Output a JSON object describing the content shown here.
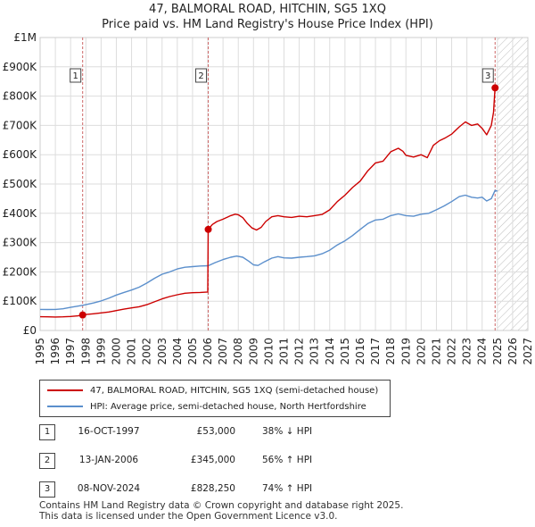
{
  "chart_data": {
    "type": "line",
    "title": "47, BALMORAL ROAD, HITCHIN, SG5 1XQ",
    "subtitle": "Price paid vs. HM Land Registry's House Price Index (HPI)",
    "x_range": [
      1995,
      2027
    ],
    "x_ticks": [
      "1995",
      "1996",
      "1997",
      "1998",
      "1999",
      "2000",
      "2001",
      "2002",
      "2003",
      "2004",
      "2005",
      "2006",
      "2007",
      "2008",
      "2009",
      "2010",
      "2011",
      "2012",
      "2013",
      "2014",
      "2015",
      "2016",
      "2017",
      "2018",
      "2019",
      "2020",
      "2021",
      "2022",
      "2023",
      "2024",
      "2025",
      "2026",
      "2027"
    ],
    "ylim": [
      0,
      1000000
    ],
    "y_ticks": [
      {
        "value": 0,
        "label": "£0"
      },
      {
        "value": 100000,
        "label": "£100K"
      },
      {
        "value": 200000,
        "label": "£200K"
      },
      {
        "value": 300000,
        "label": "£300K"
      },
      {
        "value": 400000,
        "label": "£400K"
      },
      {
        "value": 500000,
        "label": "£500K"
      },
      {
        "value": 600000,
        "label": "£600K"
      },
      {
        "value": 700000,
        "label": "£700K"
      },
      {
        "value": 800000,
        "label": "£800K"
      },
      {
        "value": 900000,
        "label": "£900K"
      },
      {
        "value": 1000000,
        "label": "£1M"
      }
    ],
    "forecast_start": 2025.0,
    "colors": {
      "property": "#cc0000",
      "hpi": "#5b8fcc",
      "grid": "#dddddd",
      "marker_line": "#cc6666"
    },
    "series": [
      {
        "name": "47, BALMORAL ROAD, HITCHIN, SG5 1XQ (semi-detached house)",
        "color": "#cc0000",
        "points": [
          [
            1995.0,
            47000
          ],
          [
            1995.5,
            46500
          ],
          [
            1996.0,
            46000
          ],
          [
            1996.5,
            46500
          ],
          [
            1997.0,
            48000
          ],
          [
            1997.5,
            50000
          ],
          [
            1997.79,
            53000
          ],
          [
            1998.0,
            54500
          ],
          [
            1998.5,
            57000
          ],
          [
            1999.0,
            60000
          ],
          [
            1999.5,
            63000
          ],
          [
            2000.0,
            68000
          ],
          [
            2000.5,
            73000
          ],
          [
            2001.0,
            77000
          ],
          [
            2001.5,
            81000
          ],
          [
            2002.0,
            88000
          ],
          [
            2002.5,
            98000
          ],
          [
            2003.0,
            108000
          ],
          [
            2003.5,
            116000
          ],
          [
            2004.0,
            122000
          ],
          [
            2004.5,
            127000
          ],
          [
            2005.0,
            129000
          ],
          [
            2005.5,
            130000
          ],
          [
            2006.0,
            131500
          ],
          [
            2006.03,
            345000
          ],
          [
            2006.3,
            362000
          ],
          [
            2006.6,
            372000
          ],
          [
            2007.0,
            380000
          ],
          [
            2007.5,
            392000
          ],
          [
            2007.8,
            397000
          ],
          [
            2008.0,
            395000
          ],
          [
            2008.3,
            385000
          ],
          [
            2008.6,
            365000
          ],
          [
            2008.9,
            350000
          ],
          [
            2009.2,
            343000
          ],
          [
            2009.5,
            352000
          ],
          [
            2009.8,
            372000
          ],
          [
            2010.2,
            388000
          ],
          [
            2010.6,
            392000
          ],
          [
            2011.0,
            388000
          ],
          [
            2011.5,
            386000
          ],
          [
            2012.0,
            390000
          ],
          [
            2012.5,
            388000
          ],
          [
            2013.0,
            392000
          ],
          [
            2013.5,
            396000
          ],
          [
            2014.0,
            412000
          ],
          [
            2014.5,
            440000
          ],
          [
            2015.0,
            462000
          ],
          [
            2015.5,
            488000
          ],
          [
            2016.0,
            510000
          ],
          [
            2016.5,
            545000
          ],
          [
            2017.0,
            572000
          ],
          [
            2017.5,
            578000
          ],
          [
            2018.0,
            610000
          ],
          [
            2018.5,
            622000
          ],
          [
            2018.8,
            612000
          ],
          [
            2019.0,
            598000
          ],
          [
            2019.5,
            592000
          ],
          [
            2020.0,
            600000
          ],
          [
            2020.4,
            590000
          ],
          [
            2020.8,
            632000
          ],
          [
            2021.2,
            648000
          ],
          [
            2021.6,
            658000
          ],
          [
            2022.0,
            670000
          ],
          [
            2022.5,
            695000
          ],
          [
            2022.9,
            712000
          ],
          [
            2023.3,
            700000
          ],
          [
            2023.7,
            705000
          ],
          [
            2024.0,
            690000
          ],
          [
            2024.3,
            668000
          ],
          [
            2024.6,
            700000
          ],
          [
            2024.75,
            745000
          ],
          [
            2024.85,
            828250
          ],
          [
            2025.0,
            835000
          ]
        ]
      },
      {
        "name": "HPI: Average price, semi-detached house, North Hertfordshire",
        "color": "#5b8fcc",
        "points": [
          [
            1995.0,
            72000
          ],
          [
            1995.5,
            71500
          ],
          [
            1996.0,
            72000
          ],
          [
            1996.5,
            74000
          ],
          [
            1997.0,
            79000
          ],
          [
            1997.79,
            86000
          ],
          [
            1998.0,
            88000
          ],
          [
            1998.5,
            94000
          ],
          [
            1999.0,
            101000
          ],
          [
            1999.5,
            110000
          ],
          [
            2000.0,
            121000
          ],
          [
            2000.5,
            130000
          ],
          [
            2001.0,
            138000
          ],
          [
            2001.5,
            148000
          ],
          [
            2002.0,
            162000
          ],
          [
            2002.5,
            178000
          ],
          [
            2003.0,
            192000
          ],
          [
            2003.5,
            200000
          ],
          [
            2004.0,
            210000
          ],
          [
            2004.5,
            216000
          ],
          [
            2005.0,
            218000
          ],
          [
            2005.5,
            220000
          ],
          [
            2006.03,
            221000
          ],
          [
            2006.5,
            232000
          ],
          [
            2007.0,
            242000
          ],
          [
            2007.5,
            250000
          ],
          [
            2007.9,
            254000
          ],
          [
            2008.3,
            250000
          ],
          [
            2008.7,
            236000
          ],
          [
            2009.0,
            224000
          ],
          [
            2009.3,
            222000
          ],
          [
            2009.7,
            234000
          ],
          [
            2010.2,
            247000
          ],
          [
            2010.6,
            252000
          ],
          [
            2011.0,
            248000
          ],
          [
            2011.5,
            247000
          ],
          [
            2012.0,
            250000
          ],
          [
            2012.5,
            252000
          ],
          [
            2013.0,
            255000
          ],
          [
            2013.5,
            262000
          ],
          [
            2014.0,
            274000
          ],
          [
            2014.5,
            292000
          ],
          [
            2015.0,
            306000
          ],
          [
            2015.5,
            324000
          ],
          [
            2016.0,
            345000
          ],
          [
            2016.5,
            365000
          ],
          [
            2017.0,
            377000
          ],
          [
            2017.5,
            380000
          ],
          [
            2018.0,
            392000
          ],
          [
            2018.5,
            398000
          ],
          [
            2019.0,
            392000
          ],
          [
            2019.5,
            390000
          ],
          [
            2020.0,
            397000
          ],
          [
            2020.5,
            400000
          ],
          [
            2021.0,
            412000
          ],
          [
            2021.5,
            425000
          ],
          [
            2022.0,
            440000
          ],
          [
            2022.5,
            457000
          ],
          [
            2022.9,
            462000
          ],
          [
            2023.3,
            455000
          ],
          [
            2023.7,
            452000
          ],
          [
            2024.0,
            455000
          ],
          [
            2024.3,
            442000
          ],
          [
            2024.6,
            450000
          ],
          [
            2024.85,
            478000
          ],
          [
            2025.0,
            476000
          ]
        ]
      }
    ],
    "sales": [
      {
        "num": "1",
        "x": 1997.79,
        "price": 53000,
        "date": "16-OCT-1997",
        "price_label": "£53,000",
        "hpi_label": "38% ↓ HPI"
      },
      {
        "num": "2",
        "x": 2006.03,
        "price": 345000,
        "date": "13-JAN-2006",
        "price_label": "£345,000",
        "hpi_label": "56% ↑ HPI"
      },
      {
        "num": "3",
        "x": 2024.85,
        "price": 828250,
        "date": "08-NOV-2024",
        "price_label": "£828,250",
        "hpi_label": "74% ↑ HPI"
      }
    ]
  },
  "legend": {
    "property_label": "47, BALMORAL ROAD, HITCHIN, SG5 1XQ (semi-detached house)",
    "hpi_label": "HPI: Average price, semi-detached house, North Hertfordshire"
  },
  "footer": {
    "line1": "Contains HM Land Registry data © Crown copyright and database right 2025.",
    "line2": "This data is licensed under the Open Government Licence v3.0."
  }
}
